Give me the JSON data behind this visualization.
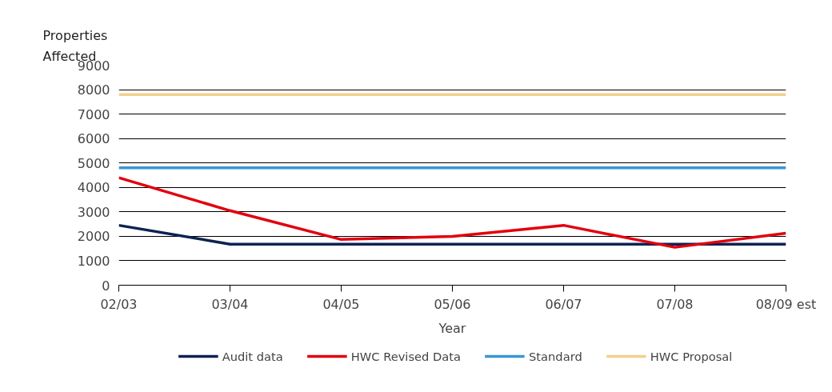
{
  "chart_data": {
    "type": "line",
    "xlabel": "Year",
    "ylabel": "Properties Affected",
    "categories": [
      "02/03",
      "03/04",
      "04/05",
      "05/06",
      "06/07",
      "07/08",
      "08/09 est"
    ],
    "series": [
      {
        "name": "Audit data",
        "color": "#0d2253",
        "values": [
          2450,
          1680,
          1680,
          1680,
          1680,
          1680,
          1680
        ]
      },
      {
        "name": "HWC Revised Data",
        "color": "#e2000f",
        "values": [
          4400,
          3050,
          1870,
          2000,
          2450,
          1550,
          2130
        ]
      },
      {
        "name": "Standard",
        "color": "#3a96d4",
        "values": [
          4800,
          4800,
          4800,
          4800,
          4800,
          4800,
          4800
        ]
      },
      {
        "name": "HWC Proposal",
        "color": "#f3d08c",
        "values": [
          7800,
          7800,
          7800,
          7800,
          7800,
          7800,
          7800
        ]
      }
    ],
    "ylim": [
      0,
      9000
    ],
    "yticks": [
      0,
      1000,
      2000,
      3000,
      4000,
      5000,
      6000,
      7000,
      8000,
      9000
    ],
    "grid": "y",
    "legend": "bottom",
    "marker": "none",
    "line_style": "solid"
  }
}
